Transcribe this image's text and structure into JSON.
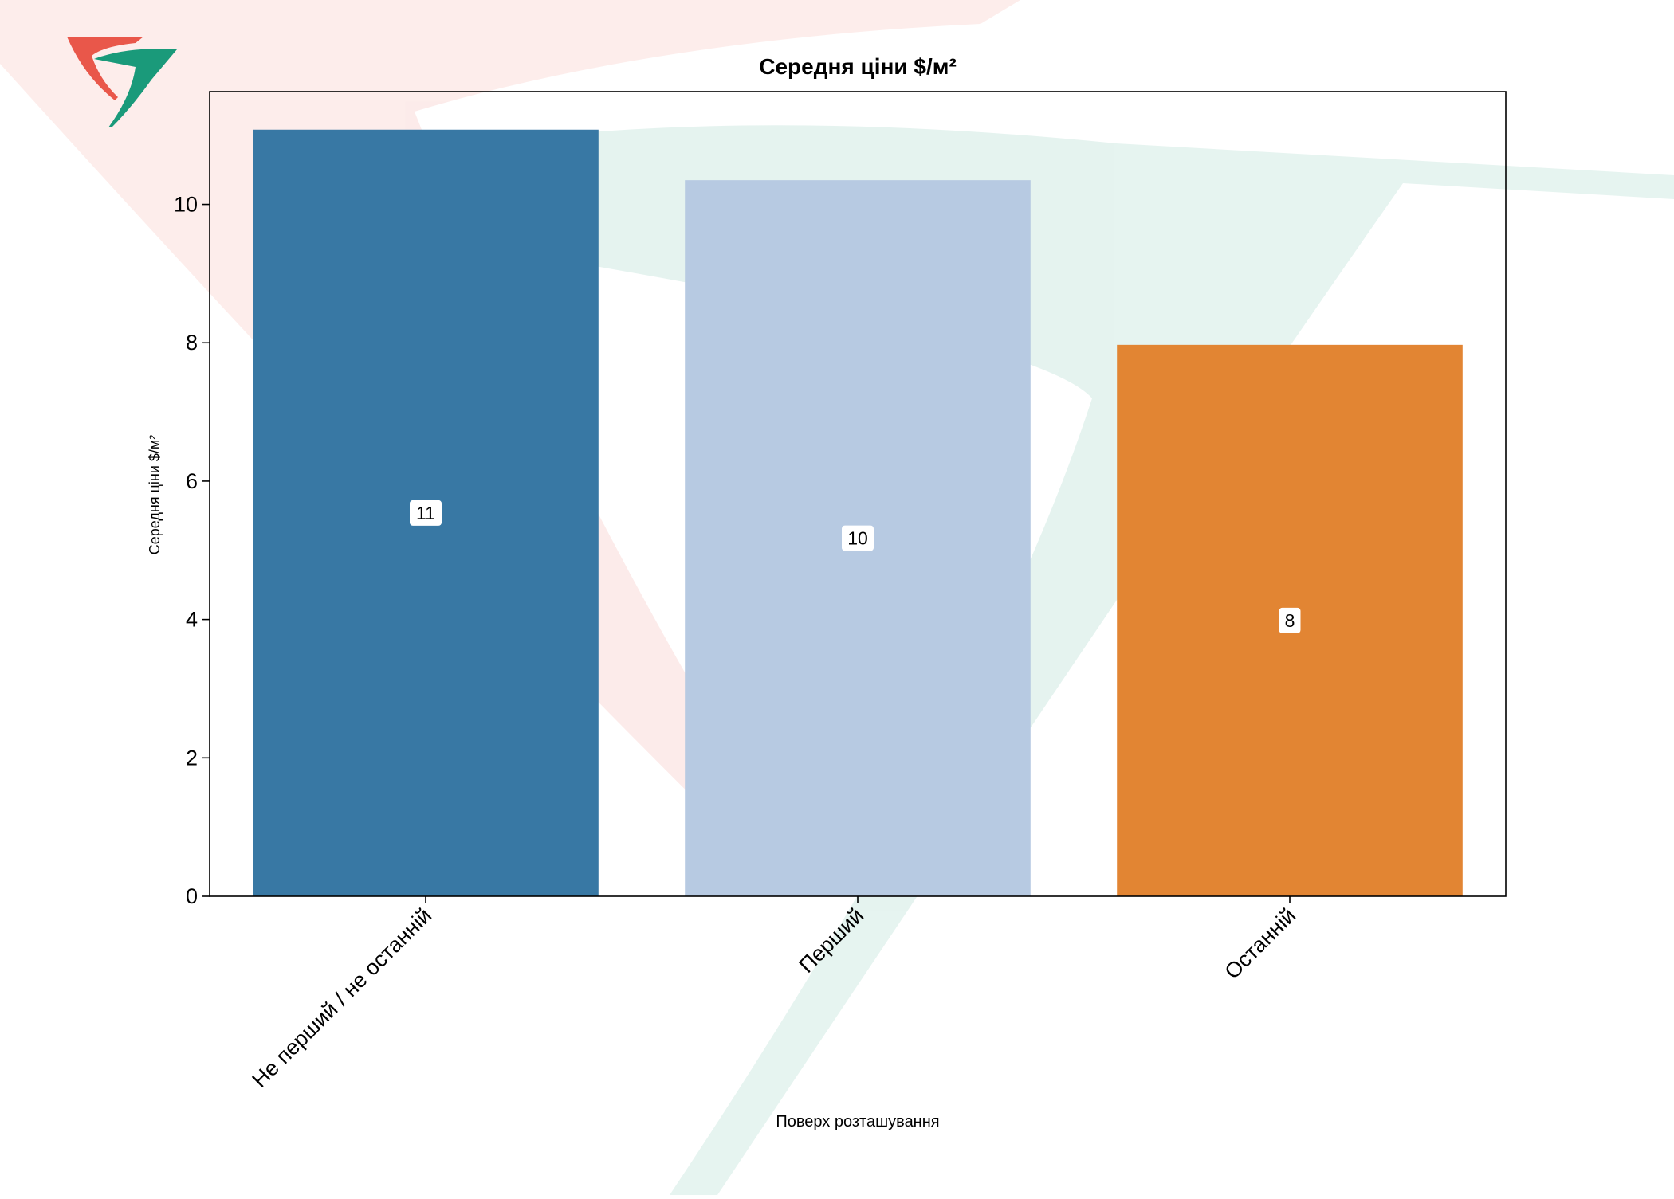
{
  "chart_data": {
    "type": "bar",
    "title": "Середня ціни $/м²",
    "xlabel": "Поверх розташування",
    "ylabel": "Середня ціни $/м²",
    "categories": [
      "Не перший / не останній",
      "Перший",
      "Останній"
    ],
    "values": [
      11.08,
      10.35,
      7.97
    ],
    "data_labels": [
      "11",
      "10",
      "8"
    ],
    "colors": [
      "#3274a1",
      "#b5c8e1",
      "#e1812c"
    ],
    "yticks": [
      0,
      2,
      4,
      6,
      8,
      10
    ],
    "ylim": [
      0,
      11.63
    ],
    "grid": false,
    "legend": "none"
  },
  "watermark": {
    "name": "watermark-logo",
    "colors": [
      "#e9574a",
      "#1a9a7a"
    ]
  },
  "logo": {
    "name": "brand-logo",
    "colors": [
      "#e9574a",
      "#1a9a7a"
    ]
  }
}
